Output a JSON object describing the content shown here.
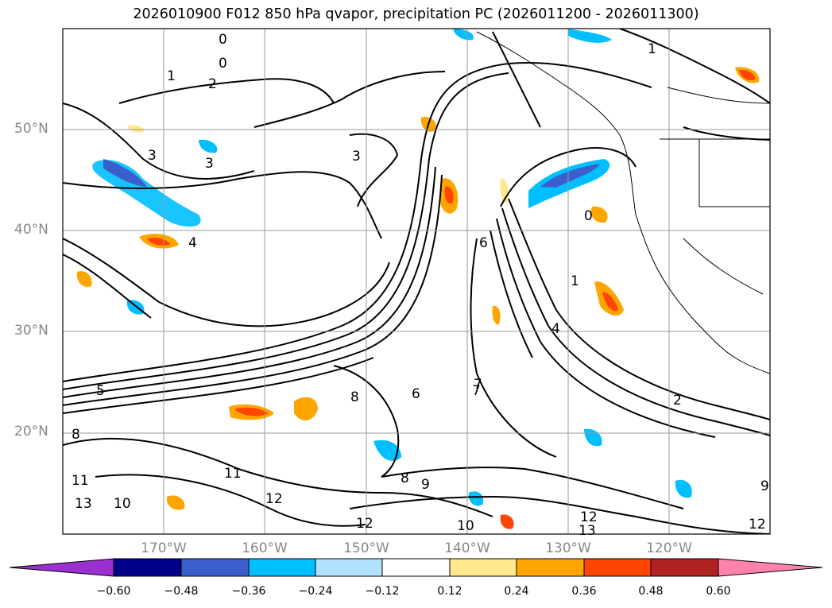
{
  "title": "2026010900 F012 850 hPa qvapor, precipitation PC (2026011200 - 2026011300)",
  "map": {
    "lon_range": [
      -180,
      -110
    ],
    "lat_range": [
      10,
      60
    ],
    "lat_ticks": [
      "50°N",
      "40°N",
      "30°N",
      "20°N"
    ],
    "lon_ticks": [
      "170°W",
      "160°W",
      "150°W",
      "140°W",
      "130°W",
      "120°W"
    ],
    "contour_labels": [
      "0",
      "0",
      "1",
      "2",
      "3",
      "3",
      "3",
      "4",
      "5",
      "6",
      "7",
      "8",
      "8",
      "9",
      "10",
      "11",
      "12",
      "12",
      "12",
      "13",
      "2",
      "1",
      "4",
      "0",
      "1",
      "6",
      "7",
      "8",
      "9",
      "10",
      "11",
      "12",
      "13"
    ]
  },
  "colorbar": {
    "ticks": [
      "−0.60",
      "−0.48",
      "−0.36",
      "−0.24",
      "−0.12",
      "0.12",
      "0.24",
      "0.36",
      "0.48",
      "0.60"
    ],
    "colors": [
      "#9b30d0",
      "#00008b",
      "#3a5fcd",
      "#00bfff",
      "#b0e2ff",
      "#ffffff",
      "#ffe88c",
      "#ffa500",
      "#ff4500",
      "#b22222",
      "#ff82ab"
    ]
  }
}
